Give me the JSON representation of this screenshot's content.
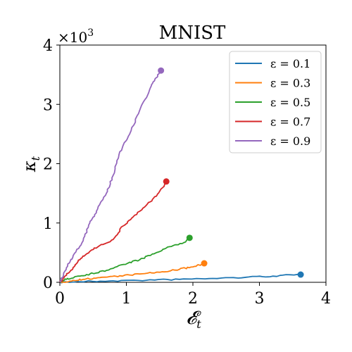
{
  "chart_data": {
    "type": "line",
    "title": "MNIST",
    "xlabel": "𝓔",
    "xlabel_sub": "t",
    "ylabel": "κ",
    "ylabel_sub": "t",
    "y_multiplier": "×10",
    "y_multiplier_exp": "3",
    "xlim": [
      0,
      4
    ],
    "ylim": [
      0,
      4
    ],
    "x_ticks": [
      0,
      1,
      2,
      3,
      4
    ],
    "y_ticks": [
      0,
      1,
      2,
      3,
      4
    ],
    "grid": false,
    "legend_position": "top-right",
    "series": [
      {
        "name": "ε = 0.1",
        "color": "#1f77b4",
        "x": [
          0.0,
          0.3,
          0.8,
          1.3,
          1.8,
          2.3,
          2.8,
          3.2,
          3.62
        ],
        "y": [
          0.0,
          0.01,
          0.025,
          0.035,
          0.05,
          0.065,
          0.085,
          0.105,
          0.13
        ]
      },
      {
        "name": "ε = 0.3",
        "color": "#ff7f0e",
        "x": [
          0.0,
          0.15,
          0.35,
          0.6,
          0.9,
          1.2,
          1.5,
          1.8,
          2.0,
          2.17
        ],
        "y": [
          0.0,
          0.02,
          0.05,
          0.08,
          0.11,
          0.14,
          0.17,
          0.22,
          0.26,
          0.32
        ]
      },
      {
        "name": "ε = 0.5",
        "color": "#2ca02c",
        "x": [
          0.0,
          0.1,
          0.25,
          0.45,
          0.7,
          0.95,
          1.2,
          1.45,
          1.65,
          1.85,
          1.95
        ],
        "y": [
          0.0,
          0.05,
          0.1,
          0.14,
          0.2,
          0.3,
          0.38,
          0.5,
          0.6,
          0.66,
          0.75
        ]
      },
      {
        "name": "ε = 0.7",
        "color": "#d62728",
        "x": [
          0.0,
          0.1,
          0.2,
          0.3,
          0.45,
          0.6,
          0.8,
          0.95,
          1.1,
          1.3,
          1.45,
          1.55,
          1.6
        ],
        "y": [
          0.0,
          0.12,
          0.25,
          0.38,
          0.52,
          0.62,
          0.72,
          0.95,
          1.1,
          1.3,
          1.45,
          1.6,
          1.7
        ]
      },
      {
        "name": "ε = 0.9",
        "color": "#9467bd",
        "x": [
          0.0,
          0.1,
          0.2,
          0.35,
          0.45,
          0.55,
          0.7,
          0.8,
          0.9,
          1.05,
          1.2,
          1.35,
          1.45,
          1.52
        ],
        "y": [
          0.0,
          0.25,
          0.45,
          0.7,
          1.0,
          1.2,
          1.5,
          1.8,
          2.2,
          2.5,
          2.9,
          3.25,
          3.45,
          3.57
        ]
      }
    ]
  }
}
